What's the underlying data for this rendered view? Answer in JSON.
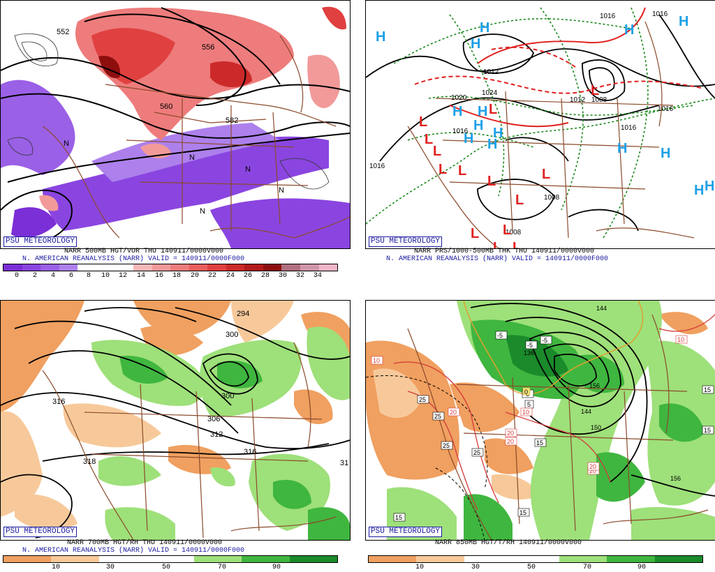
{
  "panels": [
    {
      "id": "p500",
      "badge": "PSU METEOROLOGY",
      "caption1": "NARR 500MB HGT/VOR THU 140911/0000V000",
      "caption2": "N. AMERICAN REANALYSIS (NARR) VALID = 140911/0000F000",
      "colorbar": {
        "ticks": [
          "0",
          "2",
          "4",
          "6",
          "8",
          "10",
          "12",
          "14",
          "16",
          "18",
          "20",
          "22",
          "24",
          "26",
          "28",
          "30",
          "32",
          "34"
        ],
        "colors": [
          "#7b2fd6",
          "#8a45e0",
          "#9a60e6",
          "#ad80ec",
          "#ffffff",
          "#ffffff",
          "#ffffff",
          "#f6b8b8",
          "#f29a9a",
          "#ee7c7c",
          "#e85e5e",
          "#e04040",
          "#cc2a2a",
          "#b21a1a",
          "#8e0e0e",
          "#b07080",
          "#d096aa",
          "#f0b6c8"
        ]
      },
      "labels": [
        "552",
        "556",
        "560",
        "582",
        "N"
      ]
    },
    {
      "id": "pprs",
      "badge": "PSU METEOROLOGY",
      "caption1": "NARR PRS/1000-500MB THK THU 140911/0000V000",
      "caption2": "N. AMERICAN REANALYSIS (NARR) VALID = 140911/0000F000",
      "labels": [
        "1016",
        "1016",
        "1016",
        "1016",
        "1012",
        "1012",
        "1016",
        "1008",
        "1008",
        "1008",
        "1016",
        "1024",
        "1020"
      ],
      "highs": "H",
      "lows": "L"
    },
    {
      "id": "p700",
      "badge": "PSU METEOROLOGY",
      "caption1": "NARR 700MB HGT/RH THU 140911/0000V000",
      "caption2": "N. AMERICAN REANALYSIS (NARR) VALID = 140911/0000F000",
      "colorbar": {
        "ticks": [
          "10",
          "30",
          "50",
          "70",
          "90"
        ],
        "colors": [
          "#f0a060",
          "#f7c99a",
          "#ffffff",
          "#ffffff",
          "#9ee07a",
          "#3fb63f",
          "#1a8a2a"
        ]
      },
      "labels": [
        "294",
        "300",
        "300",
        "306",
        "312",
        "316",
        "318",
        "316",
        "31"
      ]
    },
    {
      "id": "p850",
      "badge": "PSU METEOROLOGY",
      "caption1": "NARR 850MB HGT/T/RH 140911/0000V000",
      "colorbar": {
        "ticks": [
          "10",
          "30",
          "50",
          "70",
          "90"
        ],
        "colors": [
          "#f0a060",
          "#f7c99a",
          "#ffffff",
          "#ffffff",
          "#9ee07a",
          "#3fb63f",
          "#1a8a2a"
        ]
      },
      "labels": [
        "144",
        "136",
        "-5",
        "-5",
        "-5",
        "-5",
        "5",
        "0",
        "10",
        "20",
        "20",
        "20",
        "20",
        "25",
        "25",
        "25",
        "25",
        "15",
        "15",
        "15",
        "15",
        "20",
        "156",
        "150",
        "144",
        "156",
        "10",
        "10",
        "15",
        "1",
        "15"
      ]
    }
  ],
  "colors": {
    "border": "#000000",
    "badge": "#1a1aa0",
    "coast": "#8b4a2b",
    "highH": "#1ea0e6",
    "lowL": "#e02020",
    "thickGreen": "#1a8a1a",
    "thickRed": "#e02020"
  }
}
